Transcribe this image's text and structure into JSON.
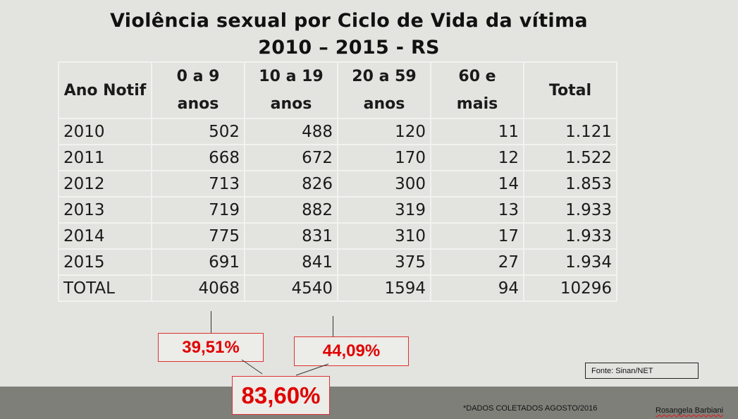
{
  "title": {
    "line1": "Violência sexual por Ciclo de Vida da vítima",
    "line2": "2010 – 2015 - RS"
  },
  "table": {
    "headers": [
      "Ano Notif",
      "0 a 9 anos",
      "10 a 19 anos",
      "20 a 59 anos",
      "60 e mais",
      "Total"
    ],
    "rows": [
      [
        "2010",
        "502",
        "488",
        "120",
        "11",
        "1.121"
      ],
      [
        "2011",
        "668",
        "672",
        "170",
        "12",
        "1.522"
      ],
      [
        "2012",
        "713",
        "826",
        "300",
        "14",
        "1.853"
      ],
      [
        "2013",
        "719",
        "882",
        "319",
        "13",
        "1.933"
      ],
      [
        "2014",
        "775",
        "831",
        "310",
        "17",
        "1.933"
      ],
      [
        "2015",
        "691",
        "841",
        "375",
        "27",
        "1.934"
      ],
      [
        "TOTAL",
        "4068",
        "4540",
        "1594",
        "94",
        "10296"
      ]
    ]
  },
  "callouts": {
    "pct_0_9": "39,51%",
    "pct_10_19": "44,09%",
    "pct_total": "83,60%"
  },
  "source": "Fonte:  Sinan/NET",
  "footnote": "*DADOS  COLETADOS AGOSTO/2016",
  "author": "Rosangela  Barbiani",
  "colors": {
    "background": "#e3e3df",
    "footer": "#7f7f7a",
    "highlight": "#e00000"
  }
}
